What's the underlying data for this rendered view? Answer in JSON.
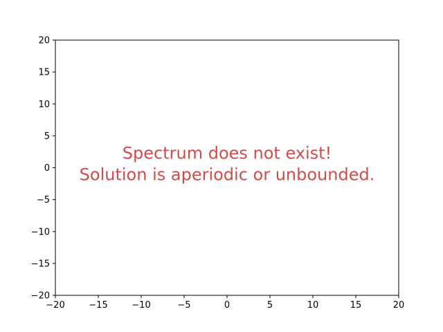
{
  "chart_data": {
    "type": "scatter",
    "title": "",
    "xlabel": "",
    "ylabel": "",
    "xlim": [
      -20,
      20
    ],
    "ylim": [
      -20,
      20
    ],
    "x_ticks": [
      -20,
      -15,
      -10,
      -5,
      0,
      5,
      10,
      15,
      20
    ],
    "y_ticks": [
      -20,
      -15,
      -10,
      -5,
      0,
      5,
      10,
      15,
      20
    ],
    "x_tick_labels": [
      "−20",
      "−15",
      "−10",
      "−5",
      "0",
      "5",
      "10",
      "15",
      "20"
    ],
    "y_tick_labels": [
      "−20",
      "−15",
      "−10",
      "−5",
      "0",
      "5",
      "10",
      "15",
      "20"
    ],
    "grid": false,
    "series": [],
    "annotation": {
      "lines": [
        "Spectrum does not exist!",
        "Solution is aperiodic or unbounded."
      ],
      "x": 0,
      "y": 0,
      "color": "#cd4c4c"
    }
  }
}
